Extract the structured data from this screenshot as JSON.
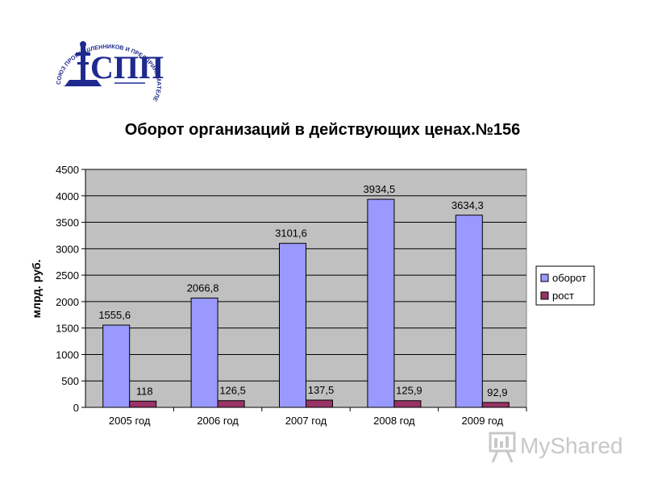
{
  "logo": {
    "ring_text": "СОЮЗ ПРОМЫШЛЕННИКОВ И ПРЕДПРИНИМАТЕЛЕЙ САНКТ-ПЕТЕРБУРГА",
    "letters": "СПП",
    "color": "#1f2a8f"
  },
  "watermark": {
    "text": "MyShared"
  },
  "chart_data": {
    "type": "bar",
    "title": "Оборот организаций в действующих ценах.№156",
    "ylabel": "млрд. руб.",
    "xlabel": "",
    "categories": [
      "2005 год",
      "2006 год",
      "2007 год",
      "2008 год",
      "2009 год"
    ],
    "ylim": [
      0,
      4500
    ],
    "yticks": [
      "0",
      "500",
      "1000",
      "1500",
      "2000",
      "2500",
      "3000",
      "3500",
      "4000",
      "4500"
    ],
    "ytick_values": [
      0,
      500,
      1000,
      1500,
      2000,
      2500,
      3000,
      3500,
      4000,
      4500
    ],
    "grid": true,
    "legend_position": "right",
    "plot_background": "#c0c0c0",
    "series": [
      {
        "name": "оборот",
        "color": "#9999ff",
        "values": [
          1555.6,
          2066.8,
          3101.6,
          3934.5,
          3634.3
        ],
        "labels": [
          "1555,6",
          "2066,8",
          "3101,6",
          "3934,5",
          "3634,3"
        ]
      },
      {
        "name": "рост",
        "color": "#993366",
        "values": [
          118,
          126.5,
          137.5,
          125.9,
          92.9
        ],
        "labels": [
          "118",
          "126,5",
          "137,5",
          "125,9",
          "92,9"
        ]
      }
    ]
  }
}
